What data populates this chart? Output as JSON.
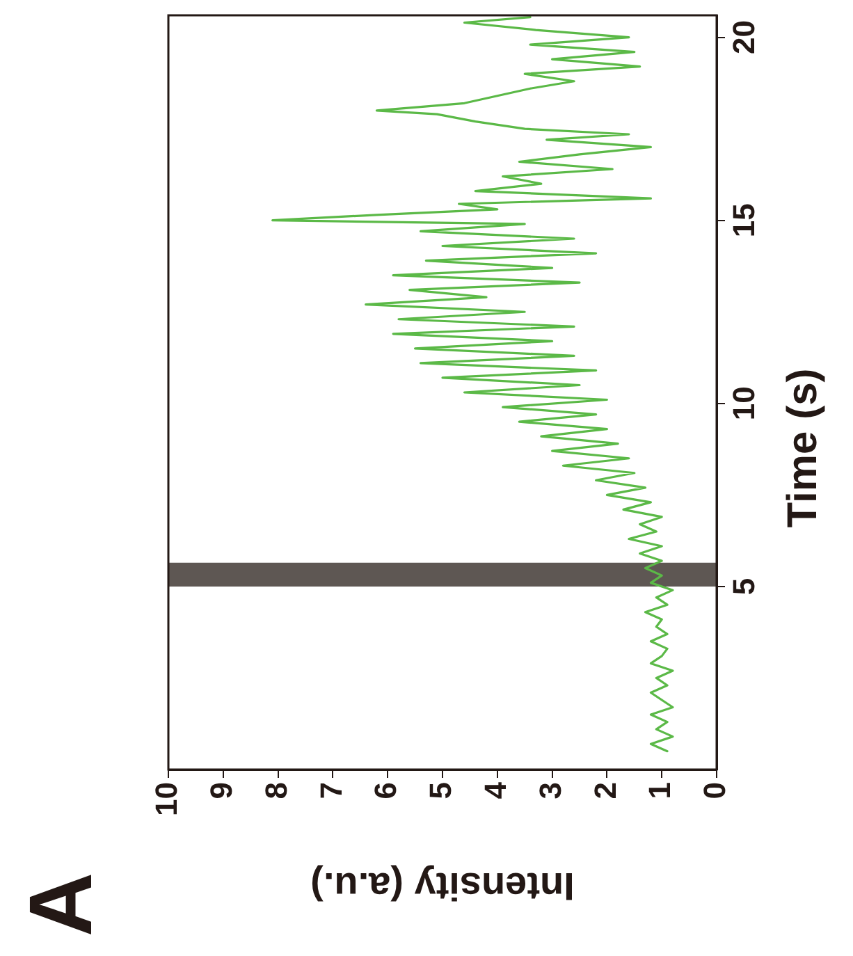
{
  "chart_data": {
    "type": "line",
    "xlabel": "Intensity (a.u.)",
    "ylabel": "Time (s)",
    "annotations": [
      "A"
    ],
    "xlim": [
      10,
      0
    ],
    "ylim": [
      0,
      20.6
    ],
    "xticks": [
      0,
      1,
      2,
      3,
      4,
      5,
      6,
      7,
      8,
      9,
      10
    ],
    "yticks": [
      5,
      10,
      15,
      20
    ],
    "grid": false,
    "legend": false,
    "marker": "none",
    "line_style": "solid",
    "bands": [
      {
        "axis": "y",
        "from": 5.0,
        "to": 5.65,
        "color": "#5e5753"
      }
    ],
    "series": [
      {
        "color": "#5bb947",
        "x": [
          0.9,
          1.2,
          0.8,
          1.1,
          0.9,
          1.2,
          0.8,
          1.0,
          1.2,
          0.9,
          1.1,
          0.8,
          1.2,
          1.0,
          0.9,
          1.2,
          0.9,
          1.1,
          1.0,
          1.3,
          0.9,
          1.1,
          0.8,
          1.2,
          1.0,
          1.3,
          1.0,
          1.4,
          1.0,
          1.6,
          1.1,
          1.4,
          1.0,
          1.7,
          1.2,
          2.0,
          1.3,
          2.2,
          1.5,
          2.8,
          1.6,
          3.0,
          1.8,
          3.2,
          2.0,
          3.6,
          2.2,
          3.9,
          2.0,
          4.6,
          2.5,
          5.0,
          2.2,
          5.4,
          2.6,
          5.5,
          3.0,
          5.9,
          2.6,
          5.8,
          3.5,
          6.4,
          4.2,
          5.6,
          2.5,
          5.9,
          3.0,
          5.3,
          2.2,
          5.0,
          2.6,
          5.4,
          3.5,
          8.1,
          6.2,
          4.0,
          4.7,
          1.2,
          4.4,
          3.2,
          3.9,
          1.9,
          3.6,
          2.5,
          1.2,
          3.1,
          1.6,
          3.5,
          4.4,
          5.1,
          6.2,
          4.6,
          4.0,
          3.4,
          2.6,
          3.5,
          1.4,
          3.0,
          1.5,
          3.4,
          1.6,
          3.3,
          4.6,
          3.4
        ],
        "values": [
          0.5,
          0.7,
          0.9,
          1.1,
          1.3,
          1.5,
          1.7,
          1.9,
          2.1,
          2.3,
          2.5,
          2.7,
          2.9,
          3.1,
          3.3,
          3.5,
          3.7,
          3.9,
          4.1,
          4.3,
          4.5,
          4.7,
          4.9,
          5.1,
          5.3,
          5.5,
          5.7,
          5.9,
          6.1,
          6.3,
          6.5,
          6.7,
          6.9,
          7.1,
          7.3,
          7.5,
          7.7,
          7.9,
          8.1,
          8.3,
          8.5,
          8.7,
          8.9,
          9.1,
          9.3,
          9.5,
          9.7,
          9.9,
          10.1,
          10.3,
          10.5,
          10.7,
          10.9,
          11.1,
          11.3,
          11.5,
          11.7,
          11.9,
          12.1,
          12.3,
          12.5,
          12.7,
          12.9,
          13.1,
          13.3,
          13.5,
          13.7,
          13.9,
          14.1,
          14.3,
          14.5,
          14.7,
          14.9,
          15.0,
          15.15,
          15.3,
          15.45,
          15.6,
          15.8,
          16.0,
          16.2,
          16.4,
          16.6,
          16.8,
          17.0,
          17.2,
          17.35,
          17.5,
          17.7,
          17.9,
          18.0,
          18.2,
          18.4,
          18.6,
          18.8,
          19.0,
          19.2,
          19.4,
          19.6,
          19.8,
          20.0,
          20.2,
          20.4,
          20.55
        ]
      }
    ]
  }
}
